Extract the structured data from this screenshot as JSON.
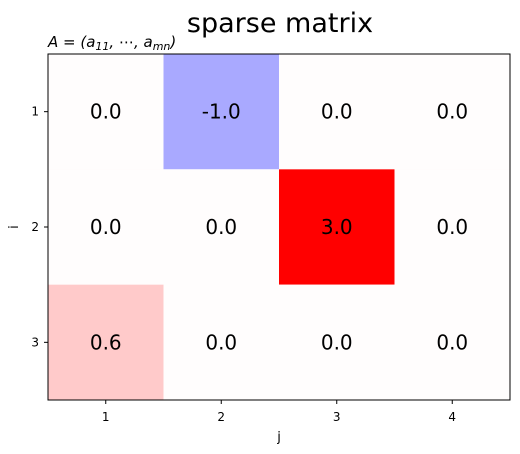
{
  "chart_data": {
    "type": "heatmap",
    "title": "sparse matrix",
    "subtitle": {
      "prefix": "A = (a",
      "sub1": "11",
      "middle": ", ⋯, a",
      "sub2": "mn",
      "suffix": ")"
    },
    "xlabel": "j",
    "ylabel": "i",
    "x_categories": [
      "1",
      "2",
      "3",
      "4"
    ],
    "y_categories": [
      "1",
      "2",
      "3"
    ],
    "values": [
      [
        0.0,
        -1.0,
        0.0,
        0.0
      ],
      [
        0.0,
        0.0,
        3.0,
        0.0
      ],
      [
        0.6,
        0.0,
        0.0,
        0.0
      ]
    ],
    "value_labels": [
      [
        "0.0",
        "-1.0",
        "0.0",
        "0.0"
      ],
      [
        "0.0",
        "0.0",
        "3.0",
        "0.0"
      ],
      [
        "0.6",
        "0.0",
        "0.0",
        "0.0"
      ]
    ],
    "colormap": "bwr",
    "color_range": [
      -3,
      3
    ],
    "colorbar": false,
    "grid": false
  }
}
